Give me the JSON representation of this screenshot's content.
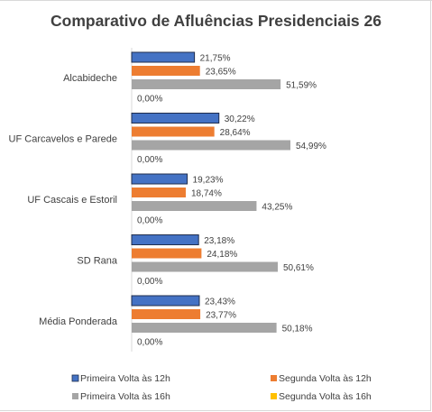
{
  "chart_data": {
    "type": "bar",
    "orientation": "horizontal",
    "title": "Comparativo de Afluências Presidenciais 26",
    "categories": [
      "Alcabideche",
      "UF Carcavelos e Parede",
      "UF Cascais e Estoril",
      "SD Rana",
      "Média Ponderada"
    ],
    "series": [
      {
        "name": "Primeira Volta às 12h",
        "color": "#4472c4",
        "values": [
          21.75,
          30.22,
          19.23,
          23.18,
          23.43
        ],
        "labels": [
          "21,75%",
          "30,22%",
          "19,23%",
          "23,18%",
          "23,43%"
        ]
      },
      {
        "name": "Segunda Volta às 12h",
        "color": "#ed7d31",
        "values": [
          23.65,
          28.64,
          18.74,
          24.18,
          23.77
        ],
        "labels": [
          "23,65%",
          "28,64%",
          "18,74%",
          "24,18%",
          "23,77%"
        ]
      },
      {
        "name": "Primeira Volta às 16h",
        "color": "#a5a5a5",
        "values": [
          51.59,
          54.99,
          43.25,
          50.61,
          50.18
        ],
        "labels": [
          "51,59%",
          "54,99%",
          "43,25%",
          "50,61%",
          "50,18%"
        ]
      },
      {
        "name": "Segunda Volta às 16h",
        "color": "#ffc000",
        "values": [
          0,
          0,
          0,
          0,
          0
        ],
        "labels": [
          "0,00%",
          "0,00%",
          "0,00%",
          "0,00%",
          "0,00%"
        ]
      }
    ],
    "legend_position": "bottom",
    "xlim": [
      0,
      60
    ],
    "grid": false
  }
}
